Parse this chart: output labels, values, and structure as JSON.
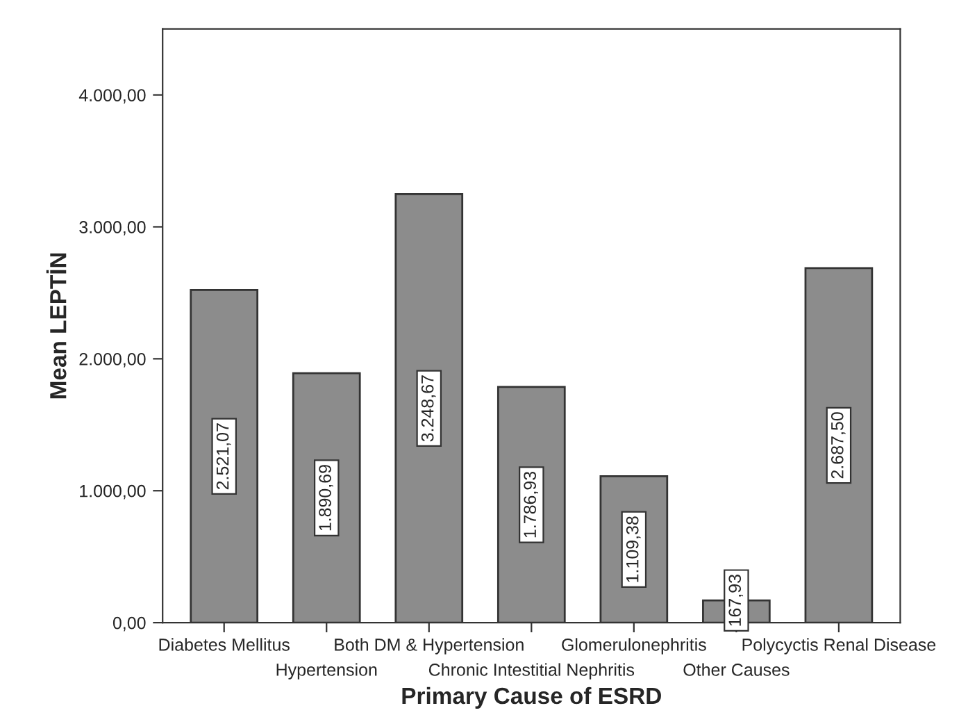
{
  "chart_data": {
    "type": "bar",
    "xlabel": "Primary Cause of ESRD",
    "ylabel": "Mean LEPTİN",
    "categories": [
      "Diabetes Mellitus",
      "Hypertension",
      "Both DM & Hypertension",
      "Chronic Intestitial Nephritis",
      "Glomerulonephritis",
      "Other Causes",
      "Polycyctis Renal Disease"
    ],
    "values": [
      2521.07,
      1890.69,
      3248.67,
      1786.93,
      1109.38,
      167.93,
      2687.5
    ],
    "value_labels": [
      "2.521,07",
      "1.890,69",
      "3.248,67",
      "1.786,93",
      "1.109,38",
      "167,93",
      "2.687,50"
    ],
    "color": "#8c8c8c",
    "ylim": [
      0,
      4500
    ],
    "yticks": [
      {
        "value": 0,
        "label": "0,00"
      },
      {
        "value": 1000,
        "label": "1.000,00"
      },
      {
        "value": 2000,
        "label": "2.000,00"
      },
      {
        "value": 3000,
        "label": "3.000,00"
      },
      {
        "value": 4000,
        "label": "4.000,00"
      }
    ],
    "grid": false,
    "legend": false
  }
}
